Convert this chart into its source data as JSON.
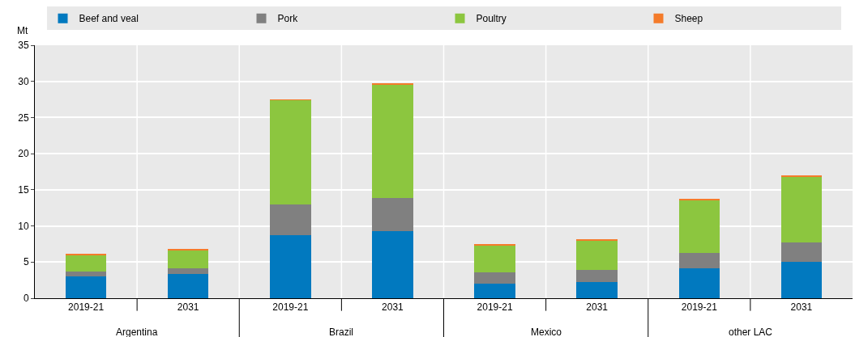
{
  "chart_data": {
    "type": "bar",
    "stacked": true,
    "ylabel": "Mt",
    "categories": [
      "2019-21",
      "2031",
      "2019-21",
      "2031",
      "2019-21",
      "2031",
      "2019-21",
      "2031"
    ],
    "series": [
      {
        "name": "Beef and veal",
        "color": "#0179bf",
        "values": [
          3.0,
          3.4,
          8.7,
          9.3,
          2.0,
          2.2,
          4.1,
          5.0
        ]
      },
      {
        "name": "Pork",
        "color": "#808080",
        "values": [
          0.7,
          0.7,
          4.3,
          4.6,
          1.6,
          1.7,
          2.2,
          2.7
        ]
      },
      {
        "name": "Poultry",
        "color": "#8cc63f",
        "values": [
          2.3,
          2.6,
          14.4,
          15.7,
          3.7,
          4.1,
          7.3,
          9.1
        ]
      },
      {
        "name": "Sheep",
        "color": "#f47b2a",
        "values": [
          0.1,
          0.1,
          0.1,
          0.2,
          0.1,
          0.1,
          0.2,
          0.2
        ]
      }
    ],
    "annotations": [
      "Argentina",
      "Brazil",
      "Mexico",
      "other LAC"
    ],
    "ylim": [
      0,
      35
    ],
    "yticks": [
      0,
      5,
      10,
      15,
      20,
      25,
      30,
      35
    ],
    "grid": true,
    "legend": "top"
  }
}
